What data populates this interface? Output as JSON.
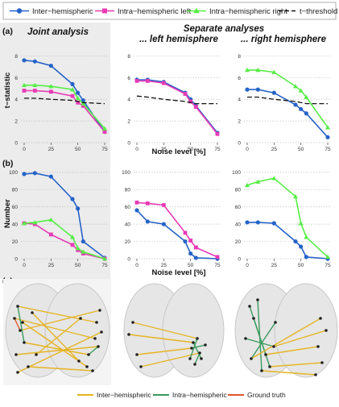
{
  "legend_top": [
    {
      "label": "Inter−hemispheric",
      "color": "#2563c9",
      "marker": "circle"
    },
    {
      "label": "Intra−hemispheric left",
      "color": "#e83ab6",
      "marker": "square"
    },
    {
      "label": "Intra−hemispheric right",
      "color": "#55ee44",
      "marker": "triangle"
    },
    {
      "label": "t−threshold",
      "color": "#111111",
      "marker": "dash"
    }
  ],
  "legend_bottom": [
    {
      "label": "Inter−hemispheric",
      "color": "#e6b422"
    },
    {
      "label": "Intra−hemispheric",
      "color": "#3a9b5c"
    },
    {
      "label": "Ground truth",
      "color": "#e2542c"
    }
  ],
  "panel_labels": {
    "a": "(a)",
    "b": "(b)",
    "c": "(c)"
  },
  "column_titles": {
    "joint": "Joint analysis",
    "separate": "Separate analyses",
    "left": "... left hemisphere",
    "right": "... right hemisphere"
  },
  "xlabel": "Noise level [%]",
  "row_ylabels": {
    "a": "t−statistic",
    "b": "Number"
  },
  "chart_data": [
    {
      "type": "line",
      "panel": "a-joint",
      "x": [
        0,
        10,
        25,
        45,
        50,
        55,
        75
      ],
      "xticks": [
        0,
        25,
        50,
        75
      ],
      "ylim": [
        0,
        9
      ],
      "yticks": [
        0,
        2,
        4,
        6,
        8
      ],
      "grid": true,
      "series": [
        {
          "name": "Inter−hemispheric",
          "values": [
            7.6,
            7.5,
            7.1,
            5.4,
            4.6,
            3.9,
            1.0
          ]
        },
        {
          "name": "Intra−hemispheric left",
          "values": [
            4.8,
            4.8,
            4.7,
            4.3,
            3.7,
            3.4,
            1.0
          ]
        },
        {
          "name": "Intra−hemispheric right",
          "values": [
            5.3,
            5.3,
            5.2,
            4.9,
            4.1,
            3.6,
            1.3
          ]
        },
        {
          "name": "t−threshold",
          "values": [
            4.1,
            4.1,
            4.0,
            3.9,
            3.8,
            3.7,
            3.6
          ]
        }
      ]
    },
    {
      "type": "line",
      "panel": "a-left",
      "x": [
        0,
        10,
        25,
        45,
        50,
        55,
        75
      ],
      "xticks": [
        0,
        25,
        50,
        75
      ],
      "ylim": [
        0,
        9
      ],
      "yticks": [
        0,
        2,
        4,
        6,
        8
      ],
      "grid": true,
      "series": [
        {
          "name": "Inter−hemispheric",
          "values": [
            5.8,
            5.8,
            5.6,
            4.6,
            4.0,
            3.4,
            0.9
          ]
        },
        {
          "name": "Intra−hemispheric left",
          "values": [
            5.7,
            5.7,
            5.5,
            4.5,
            3.8,
            3.3,
            0.8
          ]
        },
        {
          "name": "t−threshold",
          "values": [
            4.3,
            4.2,
            4.0,
            3.8,
            3.7,
            3.6,
            3.6
          ]
        }
      ]
    },
    {
      "type": "line",
      "panel": "a-right",
      "x": [
        0,
        10,
        25,
        45,
        50,
        55,
        75
      ],
      "xticks": [
        0,
        25,
        50,
        75
      ],
      "ylim": [
        0,
        9
      ],
      "yticks": [
        0,
        2,
        4,
        6,
        8
      ],
      "grid": true,
      "series": [
        {
          "name": "Inter−hemispheric",
          "values": [
            4.9,
            4.9,
            4.6,
            3.5,
            3.1,
            2.7,
            0.5
          ]
        },
        {
          "name": "Intra−hemispheric right",
          "values": [
            6.7,
            6.7,
            6.5,
            5.2,
            4.8,
            4.2,
            1.4
          ]
        },
        {
          "name": "t−threshold",
          "values": [
            4.2,
            4.2,
            4.0,
            3.8,
            3.7,
            3.6,
            3.6
          ]
        }
      ]
    },
    {
      "type": "line",
      "panel": "b-joint",
      "x": [
        0,
        10,
        25,
        45,
        50,
        55,
        75
      ],
      "xticks": [
        0,
        25,
        50,
        75
      ],
      "ylim": [
        0,
        110
      ],
      "yticks": [
        0,
        20,
        40,
        60,
        80,
        100
      ],
      "grid": true,
      "series": [
        {
          "name": "Inter−hemispheric",
          "values": [
            98,
            99,
            95,
            69,
            58,
            20,
            1
          ]
        },
        {
          "name": "Intra−hemispheric left",
          "values": [
            41,
            40,
            28,
            16,
            10,
            6,
            0
          ]
        },
        {
          "name": "Intra−hemispheric right",
          "values": [
            41,
            42,
            45,
            25,
            12,
            8,
            0
          ]
        }
      ]
    },
    {
      "type": "line",
      "panel": "b-left",
      "x": [
        0,
        10,
        25,
        45,
        50,
        55,
        75
      ],
      "xticks": [
        0,
        25,
        50,
        75
      ],
      "ylim": [
        0,
        110
      ],
      "yticks": [
        0,
        20,
        40,
        60,
        80,
        100
      ],
      "grid": true,
      "series": [
        {
          "name": "Inter−hemispheric",
          "values": [
            56,
            43,
            40,
            20,
            6,
            1,
            0
          ]
        },
        {
          "name": "Intra−hemispheric left",
          "values": [
            65,
            64,
            62,
            30,
            21,
            13,
            2
          ]
        }
      ]
    },
    {
      "type": "line",
      "panel": "b-right",
      "x": [
        0,
        10,
        25,
        45,
        50,
        55,
        75
      ],
      "xticks": [
        0,
        25,
        50,
        75
      ],
      "ylim": [
        0,
        110
      ],
      "yticks": [
        0,
        20,
        40,
        60,
        80,
        100
      ],
      "grid": true,
      "series": [
        {
          "name": "Inter−hemispheric",
          "values": [
            42,
            42,
            41,
            20,
            14,
            2,
            0
          ]
        },
        {
          "name": "Intra−hemispheric right",
          "values": [
            85,
            89,
            93,
            72,
            41,
            25,
            2
          ]
        }
      ]
    }
  ]
}
